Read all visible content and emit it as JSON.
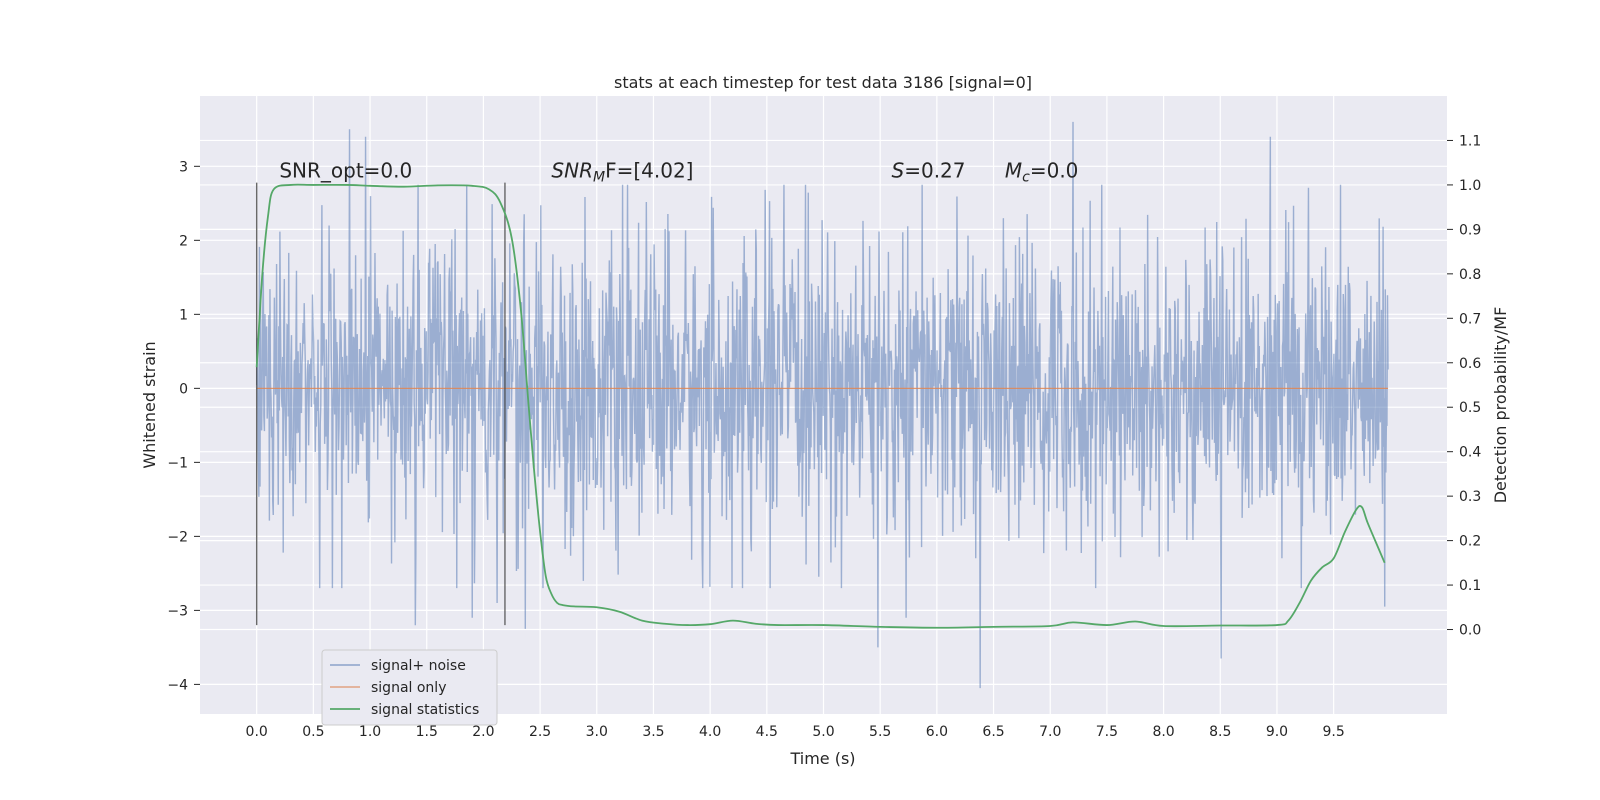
{
  "chart_data": {
    "type": "line",
    "title": "stats at each timestep for test data 3186 [signal=0]",
    "xlabel": "Time (s)",
    "ylabel": "Whitened strain",
    "y2label": "Detection probability/MF",
    "xlim": [
      -0.5,
      10.5
    ],
    "ylim": [
      -4.4,
      3.95
    ],
    "y2lim": [
      -0.19,
      1.2
    ],
    "x_ticks": [
      "0.0",
      "0.5",
      "1.0",
      "1.5",
      "2.0",
      "2.5",
      "3.0",
      "3.5",
      "4.0",
      "4.5",
      "5.0",
      "5.5",
      "6.0",
      "6.5",
      "7.0",
      "7.5",
      "8.0",
      "8.5",
      "9.0",
      "9.5"
    ],
    "y_ticks": [
      "3",
      "2",
      "1",
      "0",
      "−1",
      "−2",
      "−3",
      "−4"
    ],
    "y2_ticks": [
      "1.1",
      "1.0",
      "0.9",
      "0.8",
      "0.7",
      "0.6",
      "0.5",
      "0.4",
      "0.3",
      "0.2",
      "0.1",
      "0.0"
    ],
    "grid": true,
    "legend_position": "lower-left",
    "annotations": [
      {
        "kind": "plain",
        "parts": [
          "SNR_opt=0.0"
        ],
        "x": 0.2,
        "y": 2.85
      },
      {
        "kind": "sub",
        "parts": [
          "SNR",
          "M",
          "F=[4.02]"
        ],
        "x": 2.6,
        "y": 2.85
      },
      {
        "kind": "italic",
        "parts": [
          "S",
          "=0.27"
        ],
        "x": 5.6,
        "y": 2.85
      },
      {
        "kind": "sub",
        "parts": [
          "M",
          "c",
          "=0.0"
        ],
        "x": 6.6,
        "y": 2.85
      }
    ],
    "vlines": [
      {
        "x": 0.0,
        "ymin": -3.2,
        "ymax": 2.78
      },
      {
        "x": 2.19,
        "ymin": -3.2,
        "ymax": 2.78
      }
    ],
    "series": [
      {
        "name": "signal+ noise",
        "color": "#4c72b0",
        "opacity": 0.5,
        "style": "noise-strain",
        "t_start": 0.0,
        "t_end": 9.98,
        "n_samples": 2048,
        "extreme_points": [
          [
            0.82,
            3.5
          ],
          [
            0.96,
            3.4
          ],
          [
            1.4,
            -3.2
          ],
          [
            1.9,
            -3.1
          ],
          [
            2.12,
            -2.9
          ],
          [
            2.37,
            -3.25
          ],
          [
            5.48,
            -3.5
          ],
          [
            5.73,
            -3.1
          ],
          [
            6.38,
            -4.05
          ],
          [
            7.2,
            3.6
          ],
          [
            8.51,
            -3.65
          ],
          [
            8.94,
            3.4
          ],
          [
            9.95,
            -2.95
          ]
        ]
      },
      {
        "name": "signal only",
        "color": "#dd8452",
        "x": [
          0.0,
          9.98
        ],
        "y": [
          0.0,
          0.0
        ]
      },
      {
        "name": "signal statistics",
        "color": "#55a868",
        "axis": "right",
        "x": [
          0.0,
          0.05,
          0.1,
          0.15,
          0.3,
          0.5,
          0.8,
          1.0,
          1.3,
          1.6,
          1.9,
          2.05,
          2.15,
          2.25,
          2.33,
          2.4,
          2.45,
          2.5,
          2.55,
          2.6,
          2.65,
          2.7,
          2.8,
          3.0,
          3.2,
          3.4,
          3.6,
          3.8,
          4.0,
          4.2,
          4.4,
          4.6,
          5.0,
          5.5,
          6.0,
          6.5,
          7.0,
          7.2,
          7.5,
          7.75,
          8.0,
          8.5,
          9.0,
          9.1,
          9.2,
          9.3,
          9.4,
          9.5,
          9.6,
          9.7,
          9.75,
          9.8,
          9.9,
          9.95
        ],
        "y": [
          0.59,
          0.8,
          0.93,
          0.99,
          1.0,
          1.0,
          1.0,
          0.998,
          0.996,
          0.999,
          0.998,
          0.99,
          0.96,
          0.88,
          0.72,
          0.5,
          0.35,
          0.22,
          0.12,
          0.08,
          0.06,
          0.055,
          0.052,
          0.05,
          0.04,
          0.02,
          0.013,
          0.01,
          0.012,
          0.02,
          0.013,
          0.01,
          0.01,
          0.006,
          0.004,
          0.006,
          0.008,
          0.016,
          0.01,
          0.018,
          0.008,
          0.009,
          0.01,
          0.02,
          0.06,
          0.11,
          0.14,
          0.16,
          0.22,
          0.27,
          0.275,
          0.24,
          0.18,
          0.15
        ]
      }
    ]
  }
}
